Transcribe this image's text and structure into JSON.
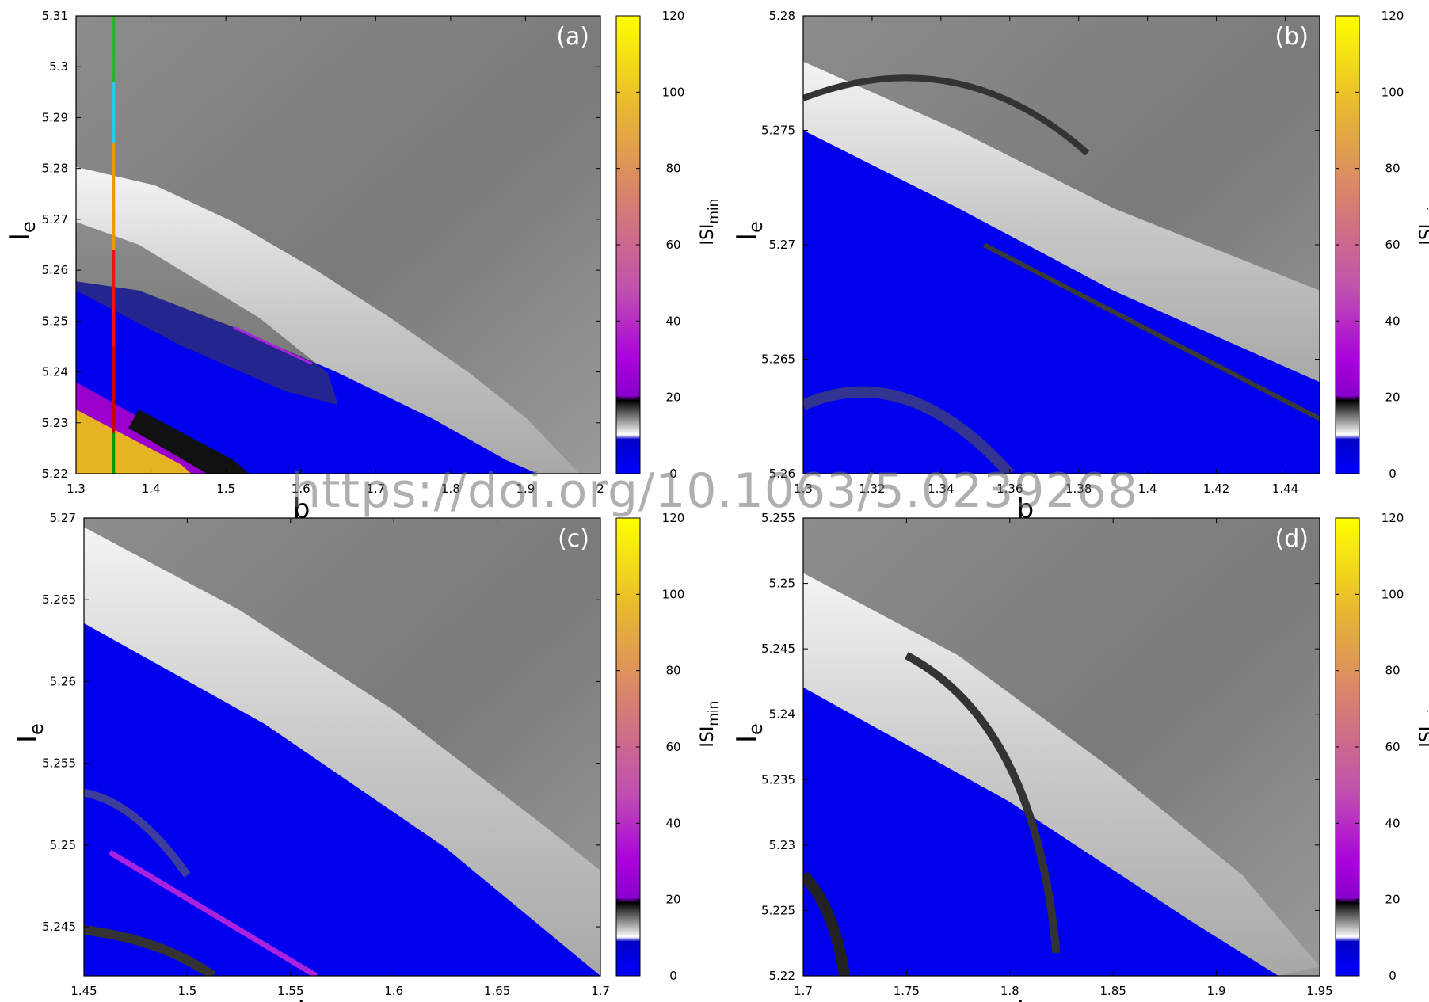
{
  "watermark": "https://doi.org/10.1063/5.0239268",
  "colorbar": {
    "label": "ISI",
    "label_sub": "min",
    "ticks": [
      0,
      20,
      40,
      60,
      80,
      100,
      120
    ],
    "range": [
      0,
      120
    ],
    "colors": [
      "#0000ff",
      "#000000",
      "#ffffff",
      "#9900cc",
      "#cc55aa",
      "#dd8866",
      "#e6b422",
      "#ffff00"
    ]
  },
  "chart_data": [
    {
      "type": "heatmap",
      "panel_label": "(a)",
      "xlabel": "b",
      "ylabel": "I",
      "ylabel_sub": "e",
      "xlim": [
        1.3,
        2.0
      ],
      "ylim": [
        5.22,
        5.31
      ],
      "xticks": [
        "1.3",
        "1.4",
        "1.5",
        "1.6",
        "1.7",
        "1.8",
        "1.9",
        "2"
      ],
      "yticks": [
        "5.22",
        "5.23",
        "5.24",
        "5.25",
        "5.26",
        "5.27",
        "5.28",
        "5.29",
        "5.3",
        "5.31"
      ],
      "annotation_line": {
        "b": 1.35,
        "segments": [
          {
            "from": 5.22,
            "to": 5.228,
            "color": "#009900"
          },
          {
            "from": 5.228,
            "to": 5.245,
            "color": "#cc0000"
          },
          {
            "from": 5.245,
            "to": 5.264,
            "color": "#ee1111"
          },
          {
            "from": 5.264,
            "to": 5.285,
            "color": "#ee9900"
          },
          {
            "from": 5.285,
            "to": 5.297,
            "color": "#22ccee"
          },
          {
            "from": 5.297,
            "to": 5.31,
            "color": "#22bb22"
          }
        ]
      }
    },
    {
      "type": "heatmap",
      "panel_label": "(b)",
      "xlabel": "b",
      "ylabel": "I",
      "ylabel_sub": "e",
      "xlim": [
        1.3,
        1.45
      ],
      "ylim": [
        5.26,
        5.28
      ],
      "xticks": [
        "1.3",
        "1.32",
        "1.34",
        "1.36",
        "1.38",
        "1.4",
        "1.42",
        "1.44"
      ],
      "yticks": [
        "5.26",
        "5.265",
        "5.27",
        "5.275",
        "5.28"
      ]
    },
    {
      "type": "heatmap",
      "panel_label": "(c)",
      "xlabel": "b",
      "ylabel": "I",
      "ylabel_sub": "e",
      "xlim": [
        1.45,
        1.7
      ],
      "ylim": [
        5.242,
        5.27
      ],
      "xticks": [
        "1.45",
        "1.5",
        "1.55",
        "1.6",
        "1.65",
        "1.7"
      ],
      "yticks": [
        "5.245",
        "5.25",
        "5.255",
        "5.26",
        "5.265",
        "5.27"
      ]
    },
    {
      "type": "heatmap",
      "panel_label": "(d)",
      "xlabel": "b",
      "ylabel": "I",
      "ylabel_sub": "e",
      "xlim": [
        1.7,
        1.95
      ],
      "ylim": [
        5.22,
        5.255
      ],
      "xticks": [
        "1.7",
        "1.75",
        "1.8",
        "1.85",
        "1.9",
        "1.95"
      ],
      "yticks": [
        "5.22",
        "5.225",
        "5.23",
        "5.235",
        "5.24",
        "5.245",
        "5.25",
        "5.255"
      ]
    }
  ]
}
